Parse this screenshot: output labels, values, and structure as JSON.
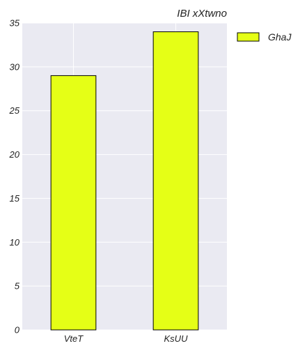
{
  "chart_data": {
    "type": "bar",
    "title": "IBI xXtwno",
    "xlabel": "",
    "ylabel": "",
    "categories": [
      "VteT",
      "KsUU"
    ],
    "series": [
      {
        "name": "GhaJ",
        "values": [
          29,
          34
        ],
        "color": "#e5ff16",
        "edgecolor": "#000000"
      }
    ],
    "ylim": [
      0,
      35
    ],
    "yticks": [
      0,
      5,
      10,
      15,
      20,
      25,
      30,
      35
    ],
    "grid": true,
    "legend_position": "right, outside plot, top",
    "background_color": "#eaeaf2",
    "grid_color": "#ffffff"
  }
}
